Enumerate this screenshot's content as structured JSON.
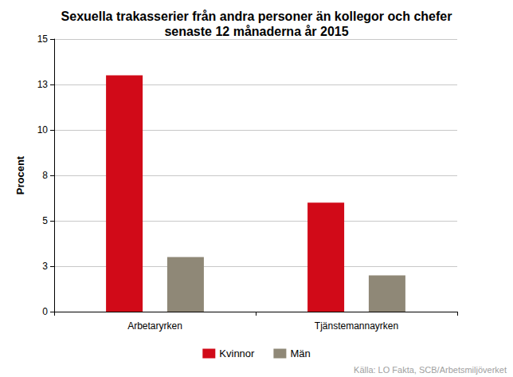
{
  "chart_data": {
    "type": "bar",
    "title": "Sexuella trakasserier från andra personer än kollegor och chefer\nsenaste 12 månaderna år 2015",
    "y_label": "Procent",
    "source": "Källa: LO Fakta, SCB/Arbetsmiljöverket",
    "categories": [
      "Arbetaryrken",
      "Tjänstemannayrken"
    ],
    "series": [
      {
        "name": "Kvinnor",
        "color": "#d10a18",
        "values": [
          13.0,
          6.0
        ]
      },
      {
        "name": "Män",
        "color": "#8f8877",
        "values": [
          3.0,
          2.0
        ]
      }
    ],
    "ylim": [
      0,
      15
    ],
    "yticks": [
      0,
      {
        "value": 2.5,
        "label": "3"
      },
      5,
      {
        "value": 7.5,
        "label": "8"
      },
      10,
      {
        "value": 12.5,
        "label": "13"
      },
      15
    ],
    "grid": true,
    "legend": "bottom"
  }
}
